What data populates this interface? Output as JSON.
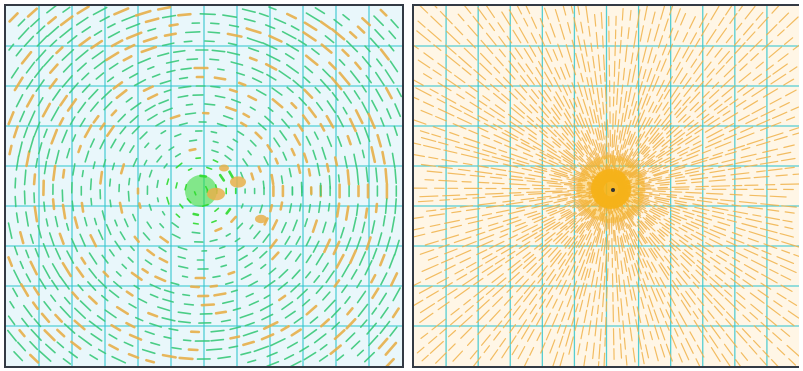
{
  "figure": {
    "panels": [
      {
        "id": "left",
        "field_type": "circulating (vortex) field",
        "colors": {
          "background": "#e9f7fb",
          "grid": "#37c7cf",
          "dense_core": "#2edb2e",
          "stroke_main": "#39c97a",
          "stroke_accent": "#e7b04a",
          "border": "#333a44"
        }
      },
      {
        "id": "right",
        "field_type": "radial (source) field",
        "colors": {
          "background": "#fff6e6",
          "grid": "#37c7cf",
          "dense_core": "#f6b214",
          "stroke_main": "#f0b24a",
          "border": "#333a44"
        }
      }
    ]
  }
}
